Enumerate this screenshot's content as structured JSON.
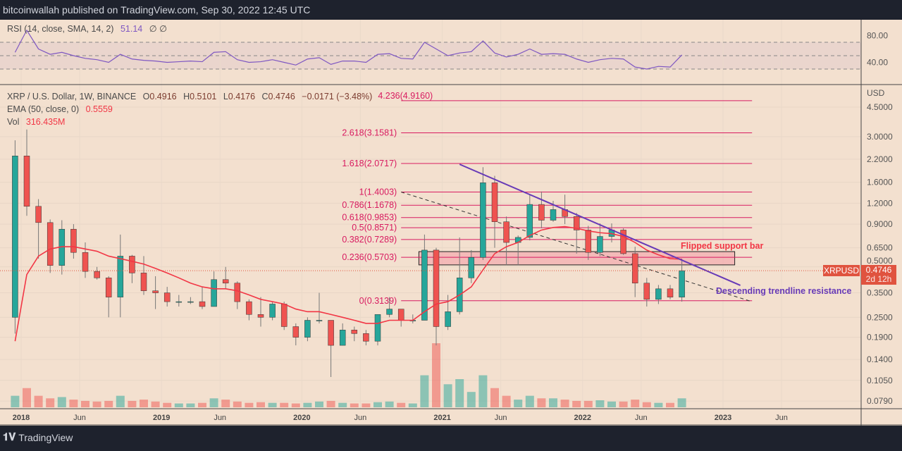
{
  "header": {
    "publisher_line": "bitcoinwallah published on TradingView.com, Sep 30, 2022 12:45 UTC"
  },
  "footer": {
    "brand": "TradingView"
  },
  "rsi_legend": {
    "label": "RSI (14, close, SMA, 14, 2)",
    "value": "51.14",
    "extra": "∅ ∅"
  },
  "main_legend": {
    "symbol": "XRP / U.S. Dollar, 1W, BINANCE",
    "o_label": "O",
    "o": "0.4916",
    "h_label": "H",
    "h": "0.5101",
    "l_label": "L",
    "l": "0.4176",
    "c_label": "C",
    "c": "0.4746",
    "change": "−0.0171 (−3.48%)",
    "ema_label": "EMA (50, close, 0)",
    "ema_value": "0.5559",
    "vol_label": "Vol",
    "vol_value": "316.435M"
  },
  "price_axis": {
    "unit": "USD",
    "ticks": [
      "4.5000",
      "3.0000",
      "2.2000",
      "1.6000",
      "1.2000",
      "0.9000",
      "0.6500",
      "0.5000",
      "0.3500",
      "0.2500",
      "0.1900",
      "0.1400",
      "0.1050",
      "0.0790"
    ]
  },
  "rsi_axis": {
    "ticks": [
      "80.00",
      "40.00"
    ]
  },
  "current_price": {
    "symbol": "XRPUSD",
    "price": "0.4746",
    "countdown": "2d 12h",
    "color": "#e0533f"
  },
  "annotations": {
    "flipped": "Flipped support bar",
    "descending": "Descending trendline resistance"
  },
  "colors": {
    "background": "#f3e0cf",
    "up": "#26a69a",
    "down": "#ef5350",
    "ema": "#f23645",
    "rsi": "#7e57c2",
    "fib": "#d81b60",
    "trendline": "#673ab7"
  },
  "chart_data": {
    "type": "candlestick",
    "interval_shown": "1W",
    "scale": "log",
    "time_ticks": [
      "2018",
      "Jun",
      "2019",
      "Jun",
      "2020",
      "Jun",
      "2021",
      "Jun",
      "2022",
      "Jun",
      "2023",
      "Jun"
    ],
    "time_tick_dates": [
      "2018-01",
      "2018-06",
      "2019-01",
      "2019-06",
      "2020-01",
      "2020-06",
      "2021-01",
      "2021-06",
      "2022-01",
      "2022-06",
      "2023-01",
      "2023-06"
    ],
    "candles": [
      [
        "2017-12",
        0.25,
        2.85,
        0.2,
        2.3
      ],
      [
        "2018-01",
        2.3,
        3.31,
        1.01,
        1.15
      ],
      [
        "2018-02",
        1.15,
        1.27,
        0.56,
        0.92
      ],
      [
        "2018-03",
        0.92,
        0.96,
        0.46,
        0.51
      ],
      [
        "2018-04",
        0.51,
        0.95,
        0.45,
        0.84
      ],
      [
        "2018-05",
        0.84,
        0.9,
        0.56,
        0.61
      ],
      [
        "2018-06",
        0.61,
        0.7,
        0.43,
        0.47
      ],
      [
        "2018-07",
        0.47,
        0.5,
        0.42,
        0.43
      ],
      [
        "2018-08",
        0.43,
        0.44,
        0.25,
        0.33
      ],
      [
        "2018-09",
        0.33,
        0.78,
        0.25,
        0.58
      ],
      [
        "2018-10",
        0.58,
        0.59,
        0.4,
        0.46
      ],
      [
        "2018-11",
        0.46,
        0.58,
        0.34,
        0.36
      ],
      [
        "2018-12",
        0.36,
        0.44,
        0.28,
        0.35
      ],
      [
        "2019-01",
        0.35,
        0.38,
        0.29,
        0.31
      ],
      [
        "2019-02",
        0.31,
        0.34,
        0.29,
        0.31
      ],
      [
        "2019-03",
        0.31,
        0.33,
        0.3,
        0.31
      ],
      [
        "2019-04",
        0.31,
        0.38,
        0.28,
        0.29
      ],
      [
        "2019-05",
        0.29,
        0.47,
        0.29,
        0.42
      ],
      [
        "2019-06",
        0.42,
        0.5,
        0.37,
        0.4
      ],
      [
        "2019-07",
        0.4,
        0.41,
        0.28,
        0.31
      ],
      [
        "2019-08",
        0.31,
        0.32,
        0.24,
        0.26
      ],
      [
        "2019-09",
        0.26,
        0.33,
        0.22,
        0.25
      ],
      [
        "2019-10",
        0.25,
        0.31,
        0.24,
        0.3
      ],
      [
        "2019-11",
        0.3,
        0.31,
        0.21,
        0.22
      ],
      [
        "2019-12",
        0.22,
        0.23,
        0.17,
        0.19
      ],
      [
        "2020-01",
        0.19,
        0.25,
        0.18,
        0.24
      ],
      [
        "2020-02",
        0.24,
        0.35,
        0.23,
        0.24
      ],
      [
        "2020-03",
        0.24,
        0.24,
        0.11,
        0.17
      ],
      [
        "2020-04",
        0.17,
        0.23,
        0.17,
        0.21
      ],
      [
        "2020-05",
        0.21,
        0.22,
        0.18,
        0.2
      ],
      [
        "2020-06",
        0.2,
        0.21,
        0.17,
        0.18
      ],
      [
        "2020-07",
        0.18,
        0.26,
        0.17,
        0.26
      ],
      [
        "2020-08",
        0.26,
        0.33,
        0.25,
        0.28
      ],
      [
        "2020-09",
        0.28,
        0.28,
        0.22,
        0.24
      ],
      [
        "2020-10",
        0.24,
        0.26,
        0.23,
        0.24
      ],
      [
        "2020-11",
        0.24,
        0.78,
        0.24,
        0.63
      ],
      [
        "2020-12",
        0.63,
        0.65,
        0.17,
        0.22
      ],
      [
        "2021-01",
        0.22,
        0.34,
        0.21,
        0.27
      ],
      [
        "2021-02",
        0.27,
        0.75,
        0.26,
        0.43
      ],
      [
        "2021-03",
        0.43,
        0.63,
        0.4,
        0.57
      ],
      [
        "2021-04",
        0.57,
        1.97,
        0.55,
        1.59
      ],
      [
        "2021-05",
        1.59,
        1.75,
        0.65,
        0.93
      ],
      [
        "2021-06",
        0.93,
        1.0,
        0.51,
        0.7
      ],
      [
        "2021-07",
        0.7,
        0.77,
        0.51,
        0.75
      ],
      [
        "2021-08",
        0.75,
        1.35,
        0.72,
        1.18
      ],
      [
        "2021-09",
        1.18,
        1.41,
        0.85,
        0.95
      ],
      [
        "2021-10",
        0.95,
        1.24,
        0.93,
        1.1
      ],
      [
        "2021-11",
        1.1,
        1.35,
        0.9,
        1.0
      ],
      [
        "2021-12",
        1.0,
        1.05,
        0.6,
        0.83
      ],
      [
        "2022-01",
        0.83,
        0.88,
        0.55,
        0.61
      ],
      [
        "2022-02",
        0.61,
        0.91,
        0.58,
        0.76
      ],
      [
        "2022-03",
        0.76,
        0.91,
        0.7,
        0.83
      ],
      [
        "2022-04",
        0.83,
        0.85,
        0.59,
        0.6
      ],
      [
        "2022-05",
        0.6,
        0.66,
        0.33,
        0.4
      ],
      [
        "2022-06",
        0.4,
        0.43,
        0.29,
        0.32
      ],
      [
        "2022-07",
        0.32,
        0.39,
        0.3,
        0.37
      ],
      [
        "2022-08",
        0.37,
        0.39,
        0.32,
        0.33
      ],
      [
        "2022-09",
        0.33,
        0.56,
        0.31,
        0.4746
      ]
    ],
    "ema50": [
      0.18,
      0.45,
      0.58,
      0.64,
      0.66,
      0.66,
      0.64,
      0.62,
      0.58,
      0.56,
      0.54,
      0.52,
      0.49,
      0.46,
      0.43,
      0.4,
      0.38,
      0.37,
      0.37,
      0.36,
      0.34,
      0.32,
      0.31,
      0.3,
      0.28,
      0.27,
      0.27,
      0.26,
      0.25,
      0.24,
      0.23,
      0.23,
      0.24,
      0.24,
      0.24,
      0.27,
      0.3,
      0.31,
      0.34,
      0.38,
      0.48,
      0.6,
      0.66,
      0.7,
      0.77,
      0.83,
      0.86,
      0.87,
      0.85,
      0.82,
      0.8,
      0.79,
      0.76,
      0.7,
      0.63,
      0.59,
      0.56,
      0.5559
    ],
    "volume_millions": [
      900,
      1500,
      900,
      700,
      800,
      600,
      500,
      450,
      500,
      900,
      500,
      600,
      450,
      350,
      300,
      300,
      350,
      700,
      600,
      450,
      350,
      400,
      350,
      350,
      300,
      350,
      450,
      500,
      350,
      300,
      300,
      400,
      450,
      350,
      300,
      2500,
      5000,
      1800,
      2200,
      1200,
      2500,
      1500,
      900,
      600,
      900,
      700,
      700,
      600,
      500,
      500,
      550,
      450,
      450,
      600,
      400,
      350,
      350,
      700
    ],
    "rsi": [
      55,
      88,
      60,
      52,
      55,
      50,
      46,
      44,
      40,
      52,
      45,
      43,
      42,
      40,
      41,
      42,
      41,
      55,
      56,
      44,
      40,
      41,
      44,
      40,
      36,
      45,
      47,
      37,
      42,
      42,
      40,
      52,
      53,
      46,
      45,
      70,
      60,
      50,
      54,
      56,
      72,
      54,
      48,
      52,
      60,
      52,
      53,
      52,
      45,
      40,
      44,
      46,
      45,
      33,
      30,
      34,
      33,
      51.14
    ],
    "rsi_bands": [
      70,
      50,
      30
    ],
    "fib_levels": [
      {
        "label": "4.236(4.9160)",
        "price": 4.916
      },
      {
        "label": "2.618(3.1581)",
        "price": 3.1581
      },
      {
        "label": "1.618(2.0717)",
        "price": 2.0717
      },
      {
        "label": "1(1.4003)",
        "price": 1.4003
      },
      {
        "label": "0.786(1.1678)",
        "price": 1.1678
      },
      {
        "label": "0.618(0.9853)",
        "price": 0.9853
      },
      {
        "label": "0.5(0.8571)",
        "price": 0.8571
      },
      {
        "label": "0.382(0.7289)",
        "price": 0.7289
      },
      {
        "label": "0.236(0.5703)",
        "price": 0.5703
      },
      {
        "label": "0(0.3139)",
        "price": 0.3139
      }
    ],
    "fib_range": [
      "2020-09",
      "2023-03"
    ],
    "descending_trendline": [
      [
        "2021-02",
        2.05
      ],
      [
        "2023-02",
        0.388
      ]
    ],
    "dashed_trendline": [
      [
        "2020-09",
        1.4
      ],
      [
        "2023-03",
        0.31
      ]
    ],
    "support_zone": {
      "from": "2020-11",
      "to": "2023-02",
      "low": 0.514,
      "high": 0.617
    }
  }
}
